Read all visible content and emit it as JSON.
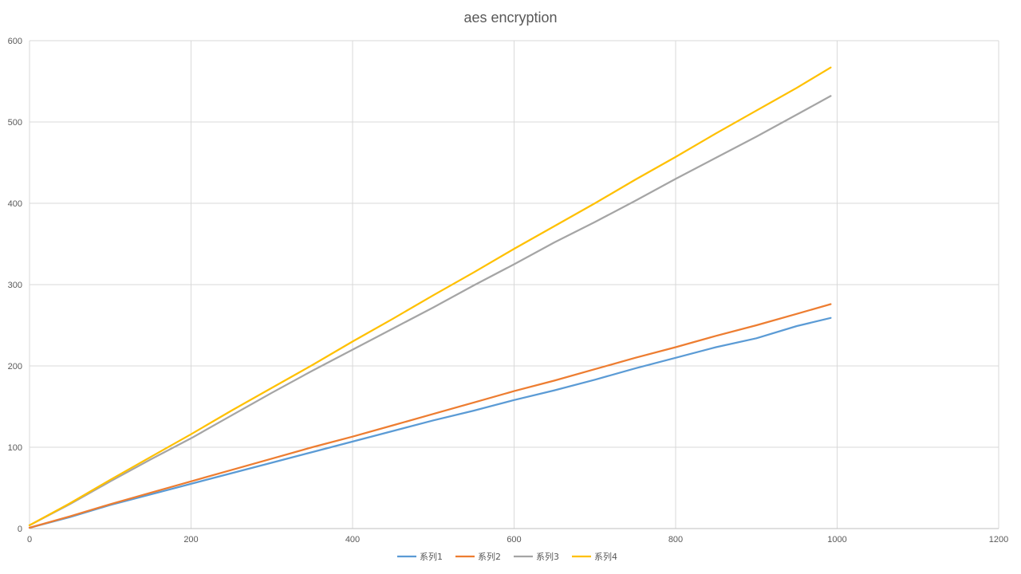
{
  "chart_data": {
    "type": "line",
    "title": "aes encryption",
    "xlabel": "",
    "ylabel": "",
    "xlim": [
      0,
      1200
    ],
    "ylim": [
      0,
      600
    ],
    "x_ticks": [
      0,
      200,
      400,
      600,
      800,
      1000,
      1200
    ],
    "y_ticks": [
      0,
      100,
      200,
      300,
      400,
      500,
      600
    ],
    "grid": true,
    "legend_position": "bottom",
    "x": [
      0,
      50,
      100,
      150,
      200,
      250,
      300,
      350,
      400,
      450,
      500,
      550,
      600,
      650,
      700,
      750,
      800,
      850,
      900,
      950,
      992
    ],
    "series": [
      {
        "name": "系列1",
        "color": "#5B9BD5",
        "values": [
          1,
          14,
          29,
          42,
          55,
          68,
          81,
          94,
          107,
          120,
          133,
          145,
          158,
          170,
          183,
          197,
          210,
          223,
          234,
          249,
          259
        ]
      },
      {
        "name": "系列2",
        "color": "#ED7D31",
        "values": [
          1,
          15,
          30,
          44,
          58,
          72,
          86,
          100,
          113,
          127,
          141,
          155,
          169,
          182,
          196,
          210,
          223,
          237,
          250,
          264,
          276
        ]
      },
      {
        "name": "系列3",
        "color": "#A5A5A5",
        "values": [
          4,
          30,
          58,
          85,
          111,
          139,
          167,
          194,
          220,
          246,
          272,
          299,
          325,
          352,
          377,
          403,
          430,
          456,
          482,
          509,
          532
        ]
      },
      {
        "name": "系列4",
        "color": "#FFC000",
        "values": [
          4,
          31,
          60,
          88,
          116,
          145,
          173,
          201,
          230,
          258,
          287,
          315,
          344,
          372,
          400,
          429,
          457,
          486,
          514,
          542,
          567
        ]
      }
    ]
  }
}
